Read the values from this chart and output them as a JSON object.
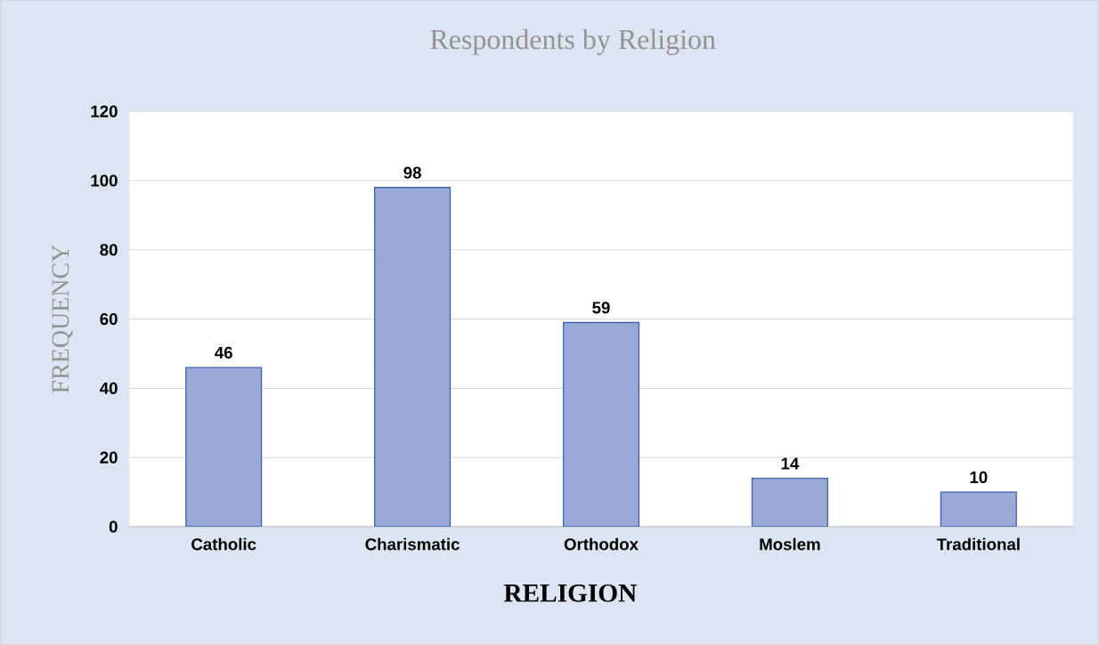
{
  "chart_data": {
    "type": "bar",
    "title": "Respondents by Religion",
    "xlabel": "RELIGION",
    "ylabel": "FREQUENCY",
    "categories": [
      "Catholic",
      "Charismatic",
      "Orthodox",
      "Moslem",
      "Traditional"
    ],
    "values": [
      46,
      98,
      59,
      14,
      10
    ],
    "color": "#9aa9d8",
    "ylim": [
      0,
      120
    ],
    "yticks": [
      0,
      20,
      40,
      60,
      80,
      100,
      120
    ],
    "grid": "y",
    "data_labels": true
  }
}
